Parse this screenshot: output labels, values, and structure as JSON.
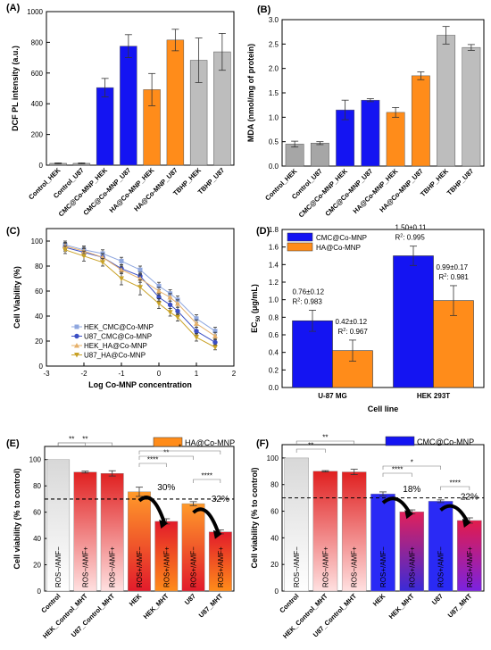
{
  "chart_data": [
    {
      "panel": "(A)",
      "type": "bar",
      "ylabel": "DCF PL intensity (a.u.)",
      "ylim": [
        0,
        1000
      ],
      "yticks": [
        0,
        200,
        400,
        600,
        800,
        1000
      ],
      "categories": [
        "Control_HEK",
        "Control_U87",
        "CMC@Co-MNP_HEK",
        "CMC@Co-MNP_U87",
        "HA@Co-MNP_HEK",
        "HA@Co-MNP_U87",
        "TBHP_HEK",
        "TBHP_U87"
      ],
      "values": [
        12,
        12,
        505,
        775,
        492,
        815,
        683,
        738
      ],
      "errors": [
        3,
        3,
        60,
        75,
        105,
        70,
        145,
        120
      ],
      "colors": [
        "#a6a6a6",
        "#a6a6a6",
        "#1414f2",
        "#1414f2",
        "#ff8c1a",
        "#ff8c1a",
        "#bdbdbd",
        "#bdbdbd"
      ]
    },
    {
      "panel": "(B)",
      "type": "bar",
      "ylabel": "MDA (nmol/mg of protein)",
      "ylim": [
        0,
        3.0
      ],
      "yticks": [
        "0.0",
        "0.5",
        "1.0",
        "1.5",
        "2.0",
        "2.5",
        "3.0"
      ],
      "categories": [
        "Control_HEK",
        "Control_U87",
        "CMC@Co-MNP_HEK",
        "CMC@Co-MNP_U87",
        "HA@Co-MNP_HEK",
        "HA@Co-MNP_U87",
        "TBHP_HEK",
        "TBHP_U87"
      ],
      "values": [
        0.45,
        0.47,
        1.15,
        1.35,
        1.1,
        1.85,
        2.68,
        2.43
      ],
      "errors": [
        0.06,
        0.03,
        0.2,
        0.03,
        0.1,
        0.08,
        0.18,
        0.06
      ],
      "colors": [
        "#a6a6a6",
        "#a6a6a6",
        "#1414f2",
        "#1414f2",
        "#ff8c1a",
        "#ff8c1a",
        "#bdbdbd",
        "#bdbdbd"
      ]
    },
    {
      "panel": "(C)",
      "type": "line",
      "xlabel": "Log Co-MNP concentration",
      "ylabel": "Cell Viability (%)",
      "xlim": [
        -3,
        2
      ],
      "ylim": [
        0,
        110
      ],
      "xticks": [
        "-3",
        "-2",
        "-1",
        "0",
        "1",
        "2"
      ],
      "yticks": [
        "0",
        "20",
        "40",
        "60",
        "80",
        "100"
      ],
      "x": [
        -2.5,
        -2.0,
        -1.5,
        -1.0,
        -0.5,
        0.0,
        0.3,
        0.5,
        1.0,
        1.5
      ],
      "series": [
        {
          "name": "HEK_CMC@Co-MNP",
          "color": "#8fa7df",
          "marker": "square",
          "values": [
            97,
            93,
            90,
            84,
            77,
            64,
            58,
            53,
            38,
            28
          ],
          "errors": [
            3,
            3,
            3,
            3,
            3,
            3,
            3,
            3,
            3,
            3
          ]
        },
        {
          "name": "U87_CMC@Co-MNP",
          "color": "#3b4fc4",
          "marker": "circle",
          "values": [
            95,
            91,
            87,
            78,
            72,
            55,
            49,
            44,
            28,
            19
          ],
          "errors": [
            3,
            3,
            3,
            3,
            3,
            3,
            3,
            3,
            3,
            3
          ]
        },
        {
          "name": "HEK_HA@Co-MNP",
          "color": "#e6b06a",
          "marker": "triangle",
          "values": [
            96,
            92,
            87,
            77,
            70,
            60,
            55,
            50,
            34,
            24
          ],
          "errors": [
            3,
            3,
            3,
            3,
            3,
            3,
            3,
            3,
            3,
            3
          ]
        },
        {
          "name": "U87_HA@Co-MNP",
          "color": "#c9a227",
          "marker": "triangle-down",
          "values": [
            93,
            88,
            83,
            70,
            63,
            50,
            43,
            39,
            23,
            15
          ],
          "errors": [
            3,
            4,
            3,
            5,
            6,
            4,
            3,
            3,
            3,
            2
          ]
        }
      ]
    },
    {
      "panel": "(D)",
      "type": "bar",
      "xlabel": "Cell line",
      "ylabel": "EC",
      "ylabel_sub": "50",
      "ylabel_unit": " (μg/mL)",
      "ylim": [
        0,
        1.8
      ],
      "yticks": [
        "0.0",
        "0.2",
        "0.4",
        "0.6",
        "0.8",
        "1.0",
        "1.2",
        "1.4",
        "1.6",
        "1.8"
      ],
      "categories": [
        "U-87 MG",
        "HEK 293T"
      ],
      "series": [
        {
          "name": "CMC@Co-MNP",
          "color": "#1414f2",
          "values": [
            0.76,
            1.5
          ],
          "errors": [
            0.12,
            0.11
          ]
        },
        {
          "name": "HA@Co-MNP",
          "color": "#ff8c1a",
          "values": [
            0.42,
            0.99
          ],
          "errors": [
            0.12,
            0.17
          ]
        }
      ],
      "annotations": [
        {
          "text": "0.76±0.12",
          "r2": "0.983"
        },
        {
          "text": "0.42±0.12",
          "r2": "0.967"
        },
        {
          "text": "1.50±0.11",
          "r2": "0.995"
        },
        {
          "text": "0.99±0.17",
          "r2": "0.981"
        }
      ]
    },
    {
      "panel": "(E)",
      "type": "bar",
      "legend": "HA@Co-MNP",
      "ylabel": "Cell viability (% to control)",
      "ylim": [
        0,
        110
      ],
      "yticks": [
        "0",
        "20",
        "40",
        "60",
        "80",
        "100"
      ],
      "threshold": 70,
      "categories": [
        "Control",
        "HEK_Control_MHT",
        "U87_Control_MHT",
        "HEK",
        "HEK_MHT",
        "U87",
        "U87_MHT"
      ],
      "values": [
        100,
        90.5,
        89.5,
        75.5,
        53,
        66.5,
        45
      ],
      "errors": [
        0,
        0.7,
        2.0,
        3.5,
        2.0,
        1.5,
        1.5
      ],
      "bar_labels": [
        "ROS−/AMF−",
        "ROS−/AMF+",
        "ROS−/AMF+",
        "ROS+/AMF−",
        "ROS+/AMF+",
        "ROS+/AMF−",
        "ROS+/AMF+"
      ],
      "reductions": [
        "30%",
        "32%"
      ],
      "significance": [
        "**",
        "**",
        "****",
        "**",
        "*",
        "****"
      ]
    },
    {
      "panel": "(F)",
      "type": "bar",
      "legend": "CMC@Co-MNP",
      "ylabel": "Cell viability (% to control)",
      "ylim": [
        0,
        110
      ],
      "yticks": [
        "0",
        "20",
        "40",
        "60",
        "80",
        "100"
      ],
      "threshold": 70,
      "categories": [
        "Control",
        "HEK_Control_MHT",
        "U87_Control_MHT",
        "HEK",
        "HEK_MHT",
        "U87",
        "U87_MHT"
      ],
      "values": [
        100,
        90,
        89.5,
        73,
        59.5,
        67.5,
        53
      ],
      "errors": [
        0,
        0.5,
        2.0,
        1.5,
        1.5,
        1.0,
        2.0
      ],
      "bar_labels": [
        "ROS−/AMF−",
        "ROS−/AMF+",
        "ROS−/AMF+",
        "ROS+/AMF−",
        "ROS+/AMF+",
        "ROS+/AMF−",
        "ROS+/AMF+"
      ],
      "reductions": [
        "18%",
        "22%"
      ],
      "significance": [
        "**",
        "**",
        "****",
        "*",
        "****"
      ]
    }
  ]
}
